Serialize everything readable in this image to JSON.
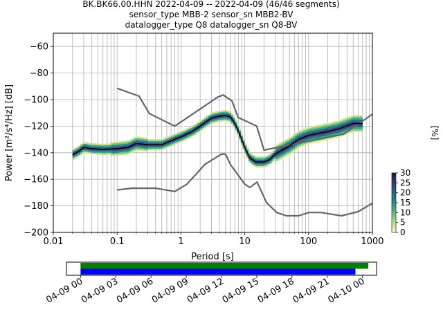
{
  "title": {
    "line1": "BK.BK66.00.HHN   2022-04-09 -- 2022-04-09  (46/46 segments)",
    "line2": "sensor_type MBB-2 sensor_sn MBB2-BV",
    "line3": "datalogger_type Q8 datalogger_sn Q8-BV"
  },
  "chart_data": {
    "type": "heatmap",
    "xlabel": "Period [s]",
    "ylabel": "Power [m²/s⁴/Hz] [dB]",
    "xscale": "log",
    "xlim": [
      0.01,
      1000
    ],
    "ylim": [
      -200,
      -50
    ],
    "xticks": [
      0.01,
      0.1,
      1,
      10,
      100,
      1000
    ],
    "xtick_labels": [
      "0.01",
      "0.1",
      "1",
      "10",
      "100",
      "1000"
    ],
    "yticks": [
      -200,
      -180,
      -160,
      -140,
      -120,
      -100,
      -80,
      -60
    ],
    "ytick_labels": [
      "−200",
      "−180",
      "−160",
      "−140",
      "−120",
      "−100",
      "−80",
      "−60"
    ],
    "grid": true,
    "series": [
      {
        "name": "",
        "role": "high-noise-model",
        "color": "#666666",
        "x": [
          0.1,
          0.22,
          0.32,
          0.8,
          3.8,
          4.6,
          6.3,
          7.9,
          15.4,
          20,
          354.8,
          1000
        ],
        "y": [
          -91.5,
          -97.4,
          -110.5,
          -120,
          -98,
          -96.5,
          -101,
          -113.5,
          -120,
          -138,
          -126,
          -111
        ]
      },
      {
        "name": "",
        "role": "low-noise-model",
        "color": "#666666",
        "x": [
          0.1,
          0.17,
          0.4,
          0.8,
          1.24,
          2.4,
          4.3,
          5.0,
          6.0,
          10,
          12,
          15.6,
          21.9,
          31.6,
          45,
          70,
          101,
          154,
          328,
          600,
          1000
        ],
        "y": [
          -168,
          -166.7,
          -166.7,
          -169.2,
          -163.7,
          -148.6,
          -141.1,
          -141.1,
          -149,
          -163.7,
          -166.2,
          -162.1,
          -177.5,
          -185,
          -187.5,
          -187.5,
          -185,
          -185,
          -187.5,
          -184.4,
          -178
        ]
      },
      {
        "name": "",
        "role": "mode",
        "color": "#000000",
        "x": [
          0.02,
          0.025,
          0.03,
          0.04,
          0.06,
          0.1,
          0.15,
          0.2,
          0.3,
          0.5,
          0.7,
          1.0,
          1.5,
          2.0,
          3.0,
          4.0,
          5.0,
          6.0,
          7.0,
          8.0,
          10,
          12,
          15,
          20,
          25,
          30,
          50,
          70,
          100,
          200,
          300,
          500,
          700
        ],
        "y": [
          -141.5,
          -139,
          -136,
          -137,
          -137.5,
          -137,
          -136,
          -133,
          -134,
          -134,
          -131,
          -128,
          -124,
          -120,
          -114,
          -112.5,
          -112,
          -113,
          -118,
          -124,
          -136,
          -144,
          -147,
          -147,
          -145,
          -141,
          -135,
          -130,
          -127,
          -124,
          -122,
          -118,
          -118
        ]
      }
    ],
    "colorbar": {
      "label": "[%]",
      "range": [
        0,
        30
      ],
      "ticks": [
        0,
        5,
        10,
        15,
        20,
        25,
        30
      ],
      "tick_labels": [
        "0",
        "5",
        "10",
        "15",
        "20",
        "25",
        "30"
      ],
      "colormap": [
        "#fafabe",
        "#c3e496",
        "#78c878",
        "#3ca582",
        "#237d87",
        "#2d5a87",
        "#35376b",
        "#2d0c48"
      ]
    }
  },
  "timeline": {
    "tick_labels": [
      "04-09 00",
      "04-09 03",
      "04-09 06",
      "04-09 09",
      "04-09 12",
      "04-09 15",
      "04-09 18",
      "04-09 21",
      "04-10 00"
    ],
    "tick_hours": [
      0,
      3,
      6,
      9,
      12,
      15,
      18,
      21,
      24
    ],
    "range_hours": [
      -1.2,
      25.2
    ],
    "coverage": [
      {
        "name": "",
        "color": "#008000",
        "start_hours": 0,
        "end_hours": 24.5
      },
      {
        "name": "",
        "color": "#0000ff",
        "start_hours": 0,
        "end_hours": 23.4
      }
    ]
  }
}
